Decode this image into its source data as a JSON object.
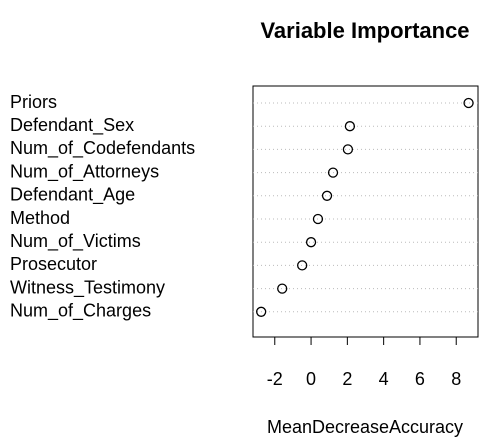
{
  "chart_data": {
    "type": "dot",
    "title": "Variable Importance",
    "x_label": "MeanDecreaseAccuracy",
    "categories": [
      "Priors",
      "Defendant_Sex",
      "Num_of_Codefendants",
      "Num_of_Attorneys",
      "Defendant_Age",
      "Method",
      "Num_of_Victims",
      "Prosecutor",
      "Witness_Testimony",
      "Num_of_Charges"
    ],
    "values": [
      8.68,
      2.14,
      2.03,
      1.21,
      0.88,
      0.38,
      0,
      -0.49,
      -1.59,
      -2.75
    ],
    "xlim": [
      -3.2,
      9.2
    ],
    "xticks": [
      -2,
      0,
      2,
      4,
      6,
      8
    ],
    "grid": true,
    "color": "#000000"
  }
}
